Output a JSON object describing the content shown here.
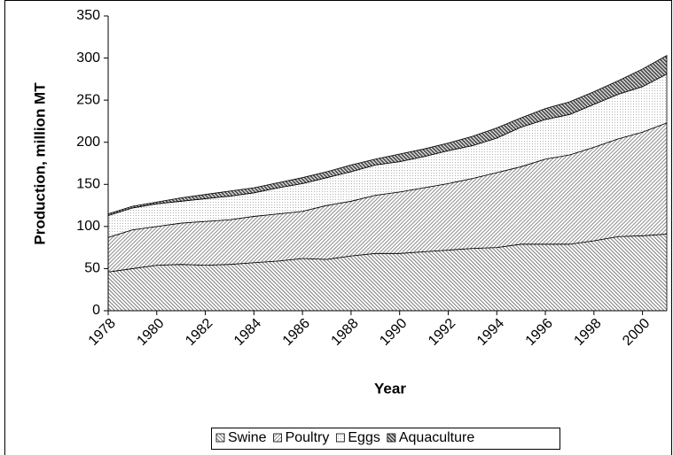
{
  "chart_data": {
    "type": "stacked_area",
    "x_label": "Year",
    "y_label": "Production, million MT",
    "x": [
      1978,
      1979,
      1980,
      1981,
      1982,
      1983,
      1984,
      1985,
      1986,
      1987,
      1988,
      1989,
      1990,
      1991,
      1992,
      1993,
      1994,
      1995,
      1996,
      1997,
      1998,
      1999,
      2000,
      2001
    ],
    "xlim": [
      1978,
      2001
    ],
    "xticks": [
      1978,
      1980,
      1982,
      1984,
      1986,
      1988,
      1990,
      1992,
      1994,
      1996,
      1998,
      2000
    ],
    "ylim": [
      0,
      350
    ],
    "yticks": [
      0,
      50,
      100,
      150,
      200,
      250,
      300,
      350
    ],
    "legend": "bottom",
    "series": [
      {
        "name": "Swine",
        "color": "#7a7a7a",
        "values": [
          46,
          50,
          54,
          55,
          54,
          55,
          57,
          59,
          62,
          61,
          65,
          68,
          68,
          70,
          72,
          74,
          75,
          79,
          79,
          79,
          83,
          88,
          89,
          91
        ]
      },
      {
        "name": "Poultry",
        "color": "#8c8c8c",
        "values": [
          41,
          46,
          46,
          49,
          52,
          53,
          55,
          56,
          56,
          64,
          65,
          69,
          73,
          76,
          79,
          83,
          89,
          92,
          101,
          106,
          111,
          116,
          123,
          132
        ]
      },
      {
        "name": "Eggs",
        "color": "#b0b0b0",
        "values": [
          26,
          26,
          27,
          26,
          27,
          28,
          28,
          31,
          33,
          33,
          35,
          36,
          36,
          37,
          39,
          39,
          41,
          47,
          47,
          48,
          51,
          53,
          54,
          58
        ]
      },
      {
        "name": "Aquaculture",
        "color": "#555555",
        "values": [
          2,
          2,
          2,
          4,
          5,
          6,
          6,
          6,
          7,
          7,
          8,
          7,
          9,
          9,
          9,
          11,
          12,
          11,
          13,
          15,
          15,
          16,
          21,
          22
        ]
      }
    ]
  }
}
